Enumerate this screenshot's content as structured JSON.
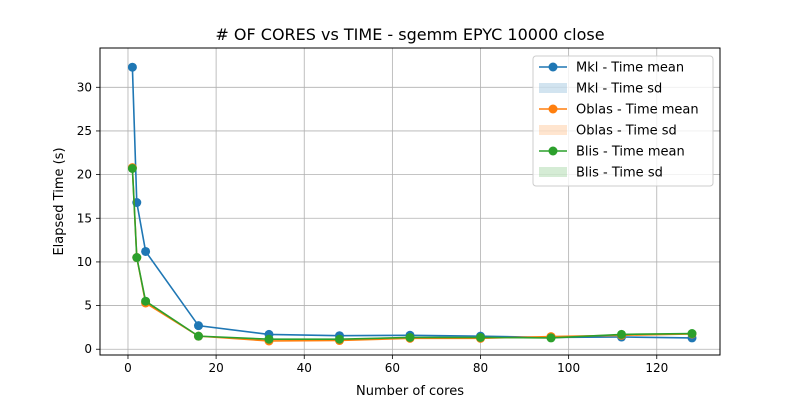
{
  "chart_data": {
    "type": "line",
    "title": "# OF CORES vs TIME - sgemm  EPYC 10000 close",
    "xlabel": "Number of cores",
    "ylabel": "Elapsed Time (s)",
    "xlim": [
      -6.35,
      134.35
    ],
    "ylim": [
      -0.66,
      34.5
    ],
    "xticks": [
      0,
      20,
      40,
      60,
      80,
      100,
      120
    ],
    "yticks": [
      0,
      5,
      10,
      15,
      20,
      25,
      30
    ],
    "grid": true,
    "legend_position": "top-right",
    "x": [
      1,
      2,
      4,
      16,
      32,
      48,
      64,
      80,
      96,
      112,
      128
    ],
    "series": [
      {
        "name": "Mkl - Time mean",
        "color": "#1f77b4",
        "values": [
          32.3,
          16.8,
          11.2,
          2.7,
          1.7,
          1.55,
          1.6,
          1.5,
          1.35,
          1.4,
          1.3
        ]
      },
      {
        "name": "Oblas - Time mean",
        "color": "#ff7f0e",
        "values": [
          20.8,
          10.5,
          5.3,
          1.5,
          0.95,
          1.0,
          1.25,
          1.25,
          1.45,
          1.6,
          1.75
        ]
      },
      {
        "name": "Blis - Time mean",
        "color": "#2ca02c",
        "values": [
          20.7,
          10.5,
          5.5,
          1.5,
          1.15,
          1.15,
          1.35,
          1.35,
          1.3,
          1.7,
          1.8
        ]
      }
    ],
    "legend": [
      {
        "label": "Mkl - Time mean",
        "kind": "line",
        "color": "#1f77b4"
      },
      {
        "label": "Mkl - Time sd",
        "kind": "band",
        "color": "#1f77b4"
      },
      {
        "label": "Oblas - Time mean",
        "kind": "line",
        "color": "#ff7f0e"
      },
      {
        "label": "Oblas - Time sd",
        "kind": "band",
        "color": "#ff7f0e"
      },
      {
        "label": "Blis - Time mean",
        "kind": "line",
        "color": "#2ca02c"
      },
      {
        "label": "Blis - Time sd",
        "kind": "band",
        "color": "#2ca02c"
      }
    ]
  }
}
